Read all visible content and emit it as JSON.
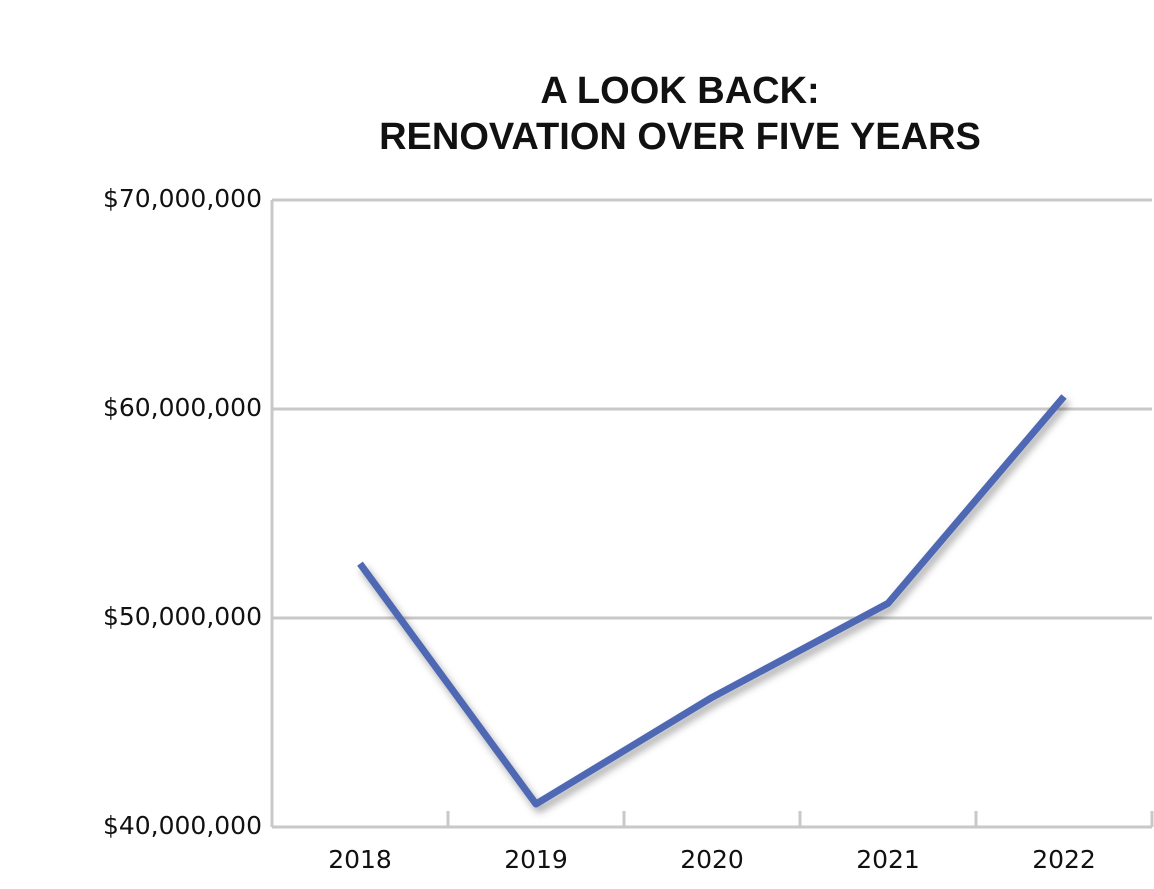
{
  "chart_data": {
    "type": "line",
    "title": [
      "A LOOK BACK:",
      "RENOVATION OVER FIVE YEARS"
    ],
    "categories": [
      "2018",
      "2019",
      "2020",
      "2021",
      "2022"
    ],
    "values": [
      52600000,
      41100000,
      46200000,
      50700000,
      60600000
    ],
    "color": "#5068b4",
    "ylim": [
      40000000,
      70000000
    ],
    "yticks": [
      {
        "value": 40000000,
        "label": "$40,000,000"
      },
      {
        "value": 50000000,
        "label": "$50,000,000"
      },
      {
        "value": 60000000,
        "label": "$60,000,000"
      },
      {
        "value": 70000000,
        "label": "$70,000,000"
      }
    ],
    "grid": true
  }
}
